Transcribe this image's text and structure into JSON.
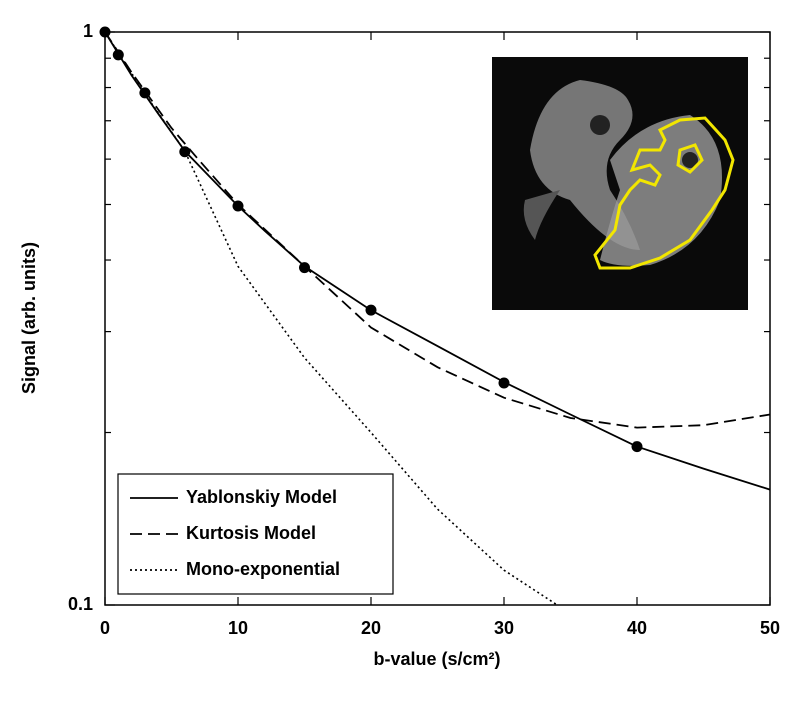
{
  "chart_data": {
    "type": "line",
    "xlabel": "b-value (s/cm²)",
    "ylabel": "Signal (arb. units)",
    "xlim": [
      0,
      50
    ],
    "xticks": [
      0,
      10,
      20,
      30,
      40,
      50
    ],
    "ylim": [
      0.1,
      1
    ],
    "yticks": [
      0.1,
      1
    ],
    "yminorticks": [
      0.2,
      0.3,
      0.4,
      0.5,
      0.6,
      0.7,
      0.8,
      0.9
    ],
    "yscale": "log",
    "legend": "lower left",
    "points": {
      "color": "#000000",
      "x": [
        0,
        1,
        3,
        6,
        10,
        15,
        20,
        30,
        40
      ],
      "y": [
        1,
        0.912,
        0.783,
        0.618,
        0.497,
        0.388,
        0.327,
        0.244,
        0.189
      ]
    },
    "series": [
      {
        "name": "Yablonskiy Model",
        "color": "#000000",
        "dash": "solid",
        "x": [
          0,
          2,
          4,
          6,
          8,
          10,
          12,
          15,
          20,
          25,
          30,
          35,
          40,
          45,
          50
        ],
        "values": [
          1,
          0.84,
          0.72,
          0.62,
          0.555,
          0.497,
          0.45,
          0.39,
          0.327,
          0.283,
          0.245,
          0.215,
          0.189,
          0.173,
          0.159
        ]
      },
      {
        "name": "Kurtosis Model",
        "color": "#000000",
        "dash": "dashed",
        "x": [
          0,
          2,
          5,
          7,
          10,
          15,
          20,
          25,
          30,
          35,
          40,
          45,
          50
        ],
        "values": [
          1,
          0.85,
          0.68,
          0.6,
          0.5,
          0.39,
          0.305,
          0.26,
          0.23,
          0.212,
          0.204,
          0.206,
          0.215
        ]
      },
      {
        "name": "Mono-exponential",
        "color": "#000000",
        "dash": "dotted",
        "x": [
          0,
          3,
          6,
          10,
          15,
          20,
          25,
          30,
          34
        ],
        "values": [
          1,
          0.78,
          0.62,
          0.39,
          0.27,
          0.2,
          0.147,
          0.115,
          0.1
        ]
      }
    ]
  }
}
